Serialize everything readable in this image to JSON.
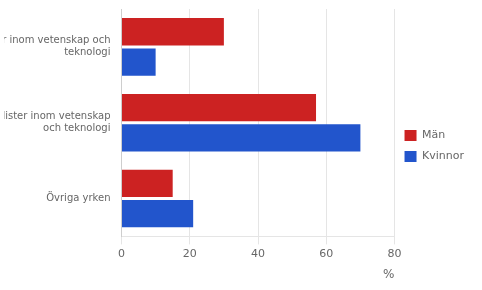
{
  "chart_data": {
    "type": "bar",
    "orientation": "horizontal",
    "categories": [
      "Chefer inom vetenskap och\nteknologi",
      "Specialister inom vetenskap\noch teknologi",
      "Övriga yrken"
    ],
    "series": [
      {
        "name": "Män",
        "color": "#CC2222",
        "values": [
          30,
          57,
          15
        ]
      },
      {
        "name": "Kvinnor",
        "color": "#2255CC",
        "values": [
          10,
          70,
          21
        ]
      }
    ],
    "xlabel": "%",
    "xlim": [
      0,
      80
    ],
    "xticks": [
      0,
      20,
      40,
      60,
      80
    ],
    "grid": true,
    "legend": "right"
  }
}
